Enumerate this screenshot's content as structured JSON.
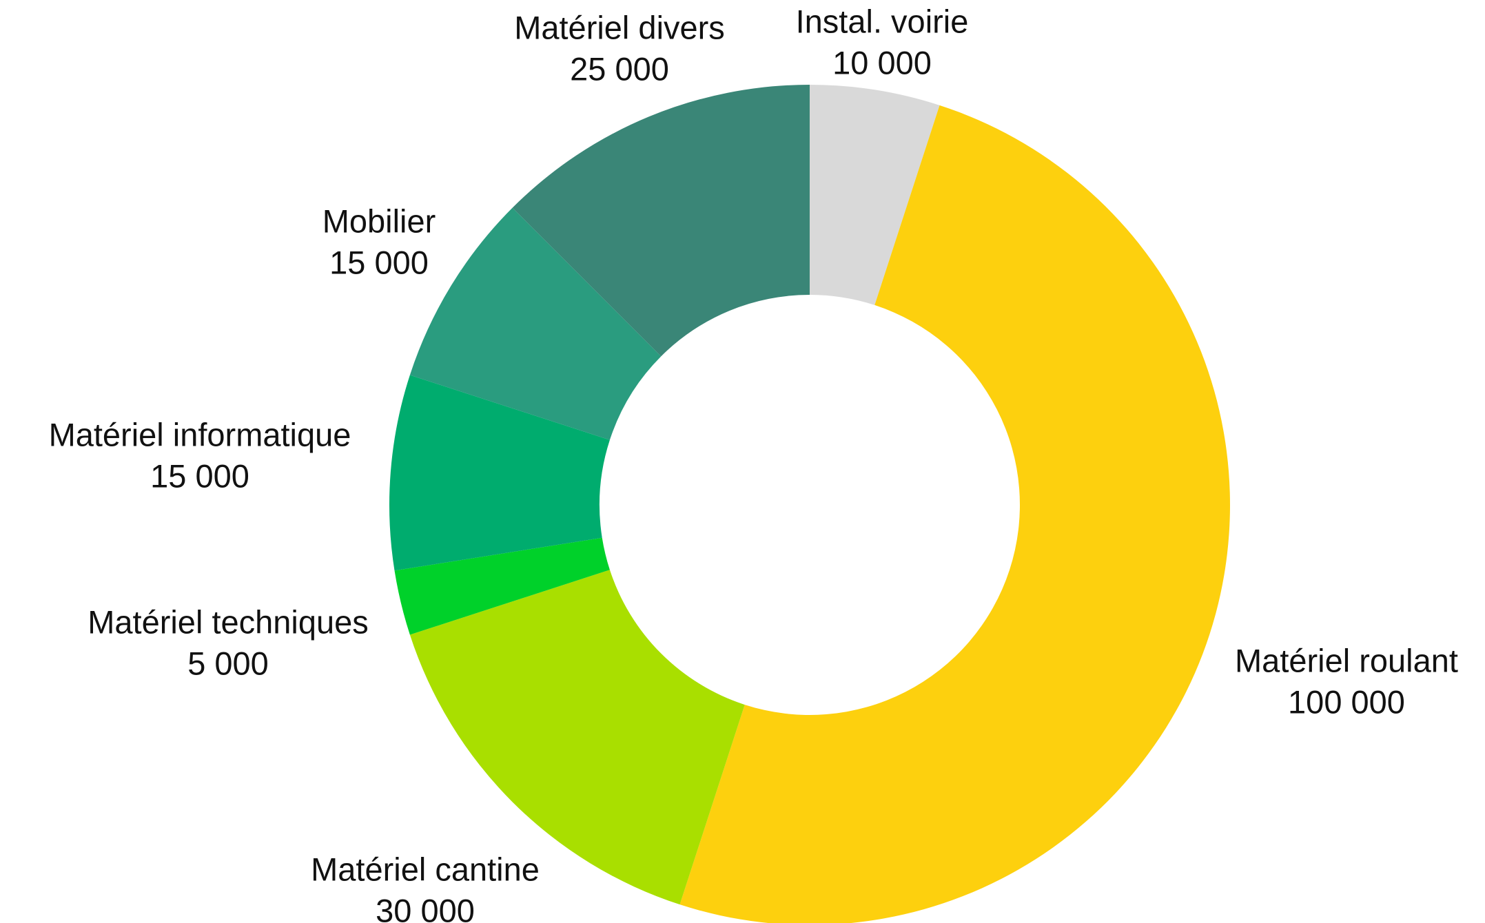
{
  "chart_data": {
    "type": "pie",
    "donut": true,
    "categories": [
      "Instal. voirie",
      "Matériel roulant",
      "Matériel cantine",
      "Matériel techniques",
      "Matériel informatique",
      "Mobilier",
      "Matériel divers"
    ],
    "values": [
      10000,
      100000,
      30000,
      5000,
      15000,
      15000,
      25000
    ],
    "value_labels": [
      "10 000",
      "100 000",
      "30 000",
      "5 000",
      "15 000",
      "15 000",
      "25 000"
    ],
    "colors": [
      "#d9d9d9",
      "#fdd00e",
      "#a9df00",
      "#00d12a",
      "#00ac6e",
      "#2a9c7f",
      "#3a8677"
    ]
  }
}
